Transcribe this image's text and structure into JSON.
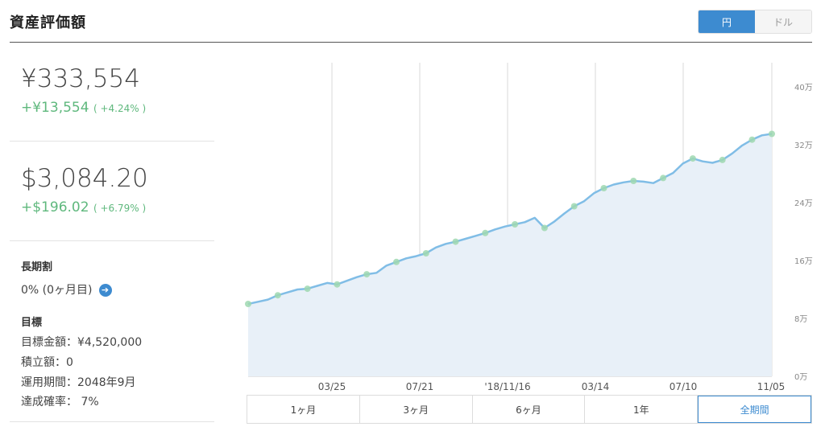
{
  "header": {
    "title": "資産評価額",
    "currency_yen": "円",
    "currency_dollar": "ドル"
  },
  "yen": {
    "total": "¥333,554",
    "change": "+¥13,554",
    "change_pct": "( +4.24% )"
  },
  "usd": {
    "total": "$3,084.20",
    "change": "+$196.02",
    "change_pct": "( +6.79% )"
  },
  "long_term": {
    "label": "長期割",
    "value": "0% (0ヶ月目)"
  },
  "goal": {
    "label": "目標",
    "amount": "目標金額：¥4,520,000",
    "installment": "積立額：0",
    "period": "運用期間：2048年9月",
    "probability": "達成確率： 7%"
  },
  "ranges": [
    "1ヶ月",
    "3ヶ月",
    "6ヶ月",
    "1年",
    "全期間"
  ],
  "active_range": "全期間",
  "colors": {
    "accent": "#3d8bd0",
    "gain": "#5fb87d",
    "line": "#80bde6",
    "area": "#e8f0f8"
  },
  "chart_data": {
    "type": "area",
    "x_tick_labels": [
      "03/25",
      "07/21",
      "'18/11/16",
      "03/14",
      "07/10",
      "11/05"
    ],
    "y_tick_labels": [
      "0万",
      "8万",
      "16万",
      "24万",
      "32万",
      "40万"
    ],
    "ylim": [
      0,
      40
    ],
    "y_unit": "万円",
    "series": [
      {
        "values": [
          10.0,
          10.3,
          10.6,
          11.2,
          11.6,
          12.0,
          12.1,
          12.5,
          12.9,
          12.7,
          13.2,
          13.7,
          14.1,
          14.3,
          15.3,
          15.8,
          16.3,
          16.6,
          17.0,
          17.8,
          18.3,
          18.6,
          19.0,
          19.4,
          19.8,
          20.3,
          20.7,
          21.0,
          21.3,
          21.9,
          20.5,
          21.4,
          22.5,
          23.5,
          24.2,
          25.3,
          26.0,
          26.5,
          26.8,
          27.0,
          26.9,
          26.7,
          27.4,
          28.1,
          29.4,
          30.1,
          29.7,
          29.5,
          29.9,
          30.8,
          31.9,
          32.7,
          33.3,
          33.5
        ]
      }
    ]
  }
}
